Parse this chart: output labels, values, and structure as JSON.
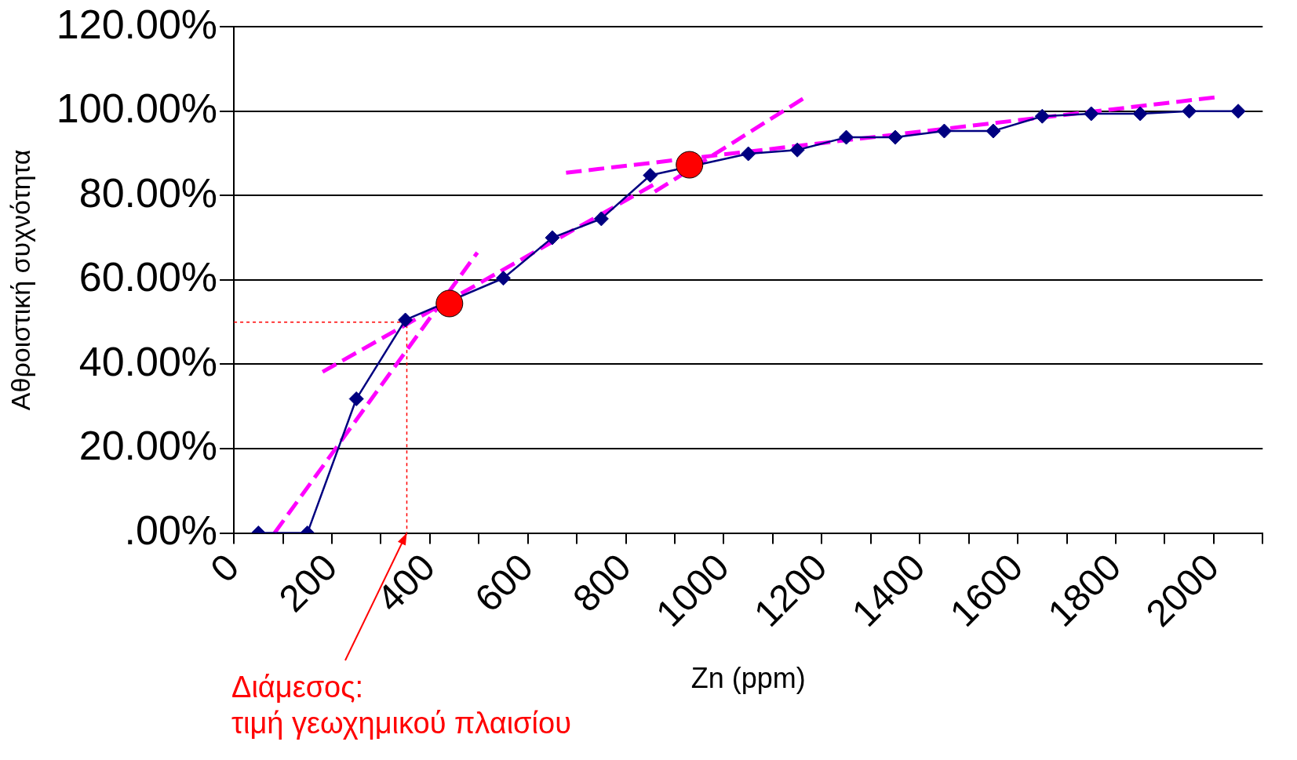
{
  "chart_data": {
    "type": "line",
    "ylabel": "Αθροιστική συχνότητα",
    "xlabel": "Zn (ppm)",
    "xlim": [
      0,
      2100
    ],
    "xticks": [
      0,
      {
        "value": 100,
        "label": null
      },
      200,
      {
        "value": 300,
        "label": null
      },
      400,
      {
        "value": 500,
        "label": null
      },
      600,
      {
        "value": 700,
        "label": null
      },
      800,
      {
        "value": 900,
        "label": null
      },
      1000,
      {
        "value": 1100,
        "label": null
      },
      1200,
      {
        "value": 1300,
        "label": null
      },
      1400,
      {
        "value": 1500,
        "label": null
      },
      1600,
      {
        "value": 1700,
        "label": null
      },
      1800,
      {
        "value": 1900,
        "label": null
      },
      2000,
      {
        "value": 2100,
        "label": null
      }
    ],
    "ylim": [
      0,
      120
    ],
    "yticks": [
      {
        "value": 0,
        "label": ".00%"
      },
      {
        "value": 20,
        "label": "20.00%"
      },
      {
        "value": 40,
        "label": "40.00%"
      },
      {
        "value": 60,
        "label": "60.00%"
      },
      {
        "value": 80,
        "label": "80.00%"
      },
      {
        "value": 100,
        "label": "100.00%"
      },
      {
        "value": 120,
        "label": "120.00%"
      }
    ],
    "grid": "y",
    "legend": false,
    "series": [
      {
        "type": "line",
        "color": "#000080",
        "marker": "diamond",
        "line_style": "solid",
        "x": [
          50,
          150,
          250,
          350,
          550,
          650,
          750,
          850,
          1050,
          1150,
          1250,
          1350,
          1450,
          1550,
          1650,
          1750,
          1850,
          1950,
          2050
        ],
        "values": [
          0,
          0,
          31.8,
          50.5,
          60.4,
          70,
          74.5,
          84.8,
          89.9,
          90.8,
          93.8,
          93.8,
          95.3,
          95.3,
          98.8,
          99.4,
          99.4,
          100,
          100
        ]
      },
      {
        "type": "line",
        "color": "#ff00ff",
        "marker": "none",
        "line_style": "dashed",
        "x": [
          83,
          497
        ],
        "values": [
          0,
          66.5
        ]
      },
      {
        "type": "line",
        "color": "#ff00ff",
        "marker": "none",
        "line_style": "dashed",
        "x": [
          181,
          866
        ],
        "values": [
          38.2,
          83.2
        ]
      },
      {
        "type": "line",
        "color": "#ff00ff",
        "marker": "none",
        "line_style": "dashed",
        "x": [
          678,
          2005
        ],
        "values": [
          85.4,
          103.3
        ]
      },
      {
        "type": "line",
        "color": "#ff00ff",
        "marker": "none",
        "line_style": "dashed",
        "x": [
          859,
          1169
        ],
        "values": [
          80.9,
          103.5
        ]
      },
      {
        "type": "line",
        "color": "#ff0000",
        "marker": "none",
        "line_style": "dotted",
        "x": [
          0,
          353,
          353
        ],
        "values": [
          50,
          50,
          0
        ]
      },
      {
        "type": "scatter",
        "color": "#ff0000",
        "marker": "circle",
        "x": [
          440,
          930
        ],
        "values": [
          54.4,
          87.3
        ]
      }
    ],
    "annotations": [
      {
        "text": "Διάμεσος: τιμή γεωχημικού πλαισίου",
        "x": 353,
        "y": 0
      }
    ]
  }
}
